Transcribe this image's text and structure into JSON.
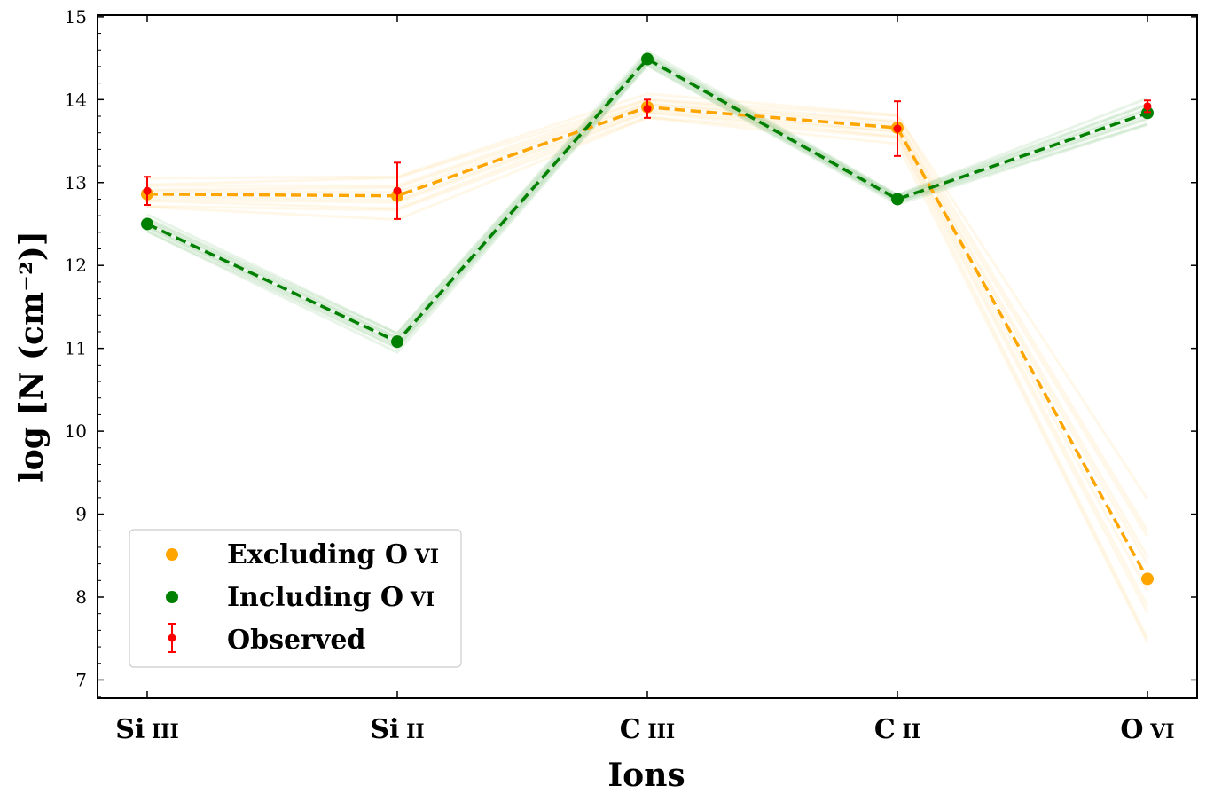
{
  "chart_data": {
    "type": "line",
    "xlabel": "Ions",
    "ylabel": "log [N (cm⁻²)]",
    "categories": [
      {
        "main": "Si",
        "sub": "III"
      },
      {
        "main": "Si",
        "sub": "II"
      },
      {
        "main": "C",
        "sub": "III"
      },
      {
        "main": "C",
        "sub": "II"
      },
      {
        "main": "O",
        "sub": "VI"
      }
    ],
    "ylim": [
      6.78,
      15.02
    ],
    "yticks": [
      7,
      8,
      9,
      10,
      11,
      12,
      13,
      14,
      15
    ],
    "grid": false,
    "legend_position": "lower-left",
    "series": [
      {
        "name": "Excluding O VI",
        "legend_main": "Excluding O",
        "legend_sub": "VI",
        "color": "#ffa500",
        "values": [
          12.86,
          12.84,
          13.91,
          13.66,
          8.22
        ],
        "line_style": "dashed"
      },
      {
        "name": "Including O VI",
        "legend_main": "Including O",
        "legend_sub": "VI",
        "color": "#008000",
        "values": [
          12.5,
          11.08,
          14.49,
          12.8,
          13.84
        ],
        "line_style": "dashed"
      }
    ],
    "observed": {
      "name": "Observed",
      "color": "#ff0000",
      "values": [
        12.9,
        12.9,
        13.89,
        13.65,
        13.92
      ],
      "err_low": [
        0.17,
        0.34,
        0.11,
        0.33,
        0.07
      ],
      "err_high": [
        0.17,
        0.34,
        0.11,
        0.33,
        0.07
      ]
    }
  }
}
